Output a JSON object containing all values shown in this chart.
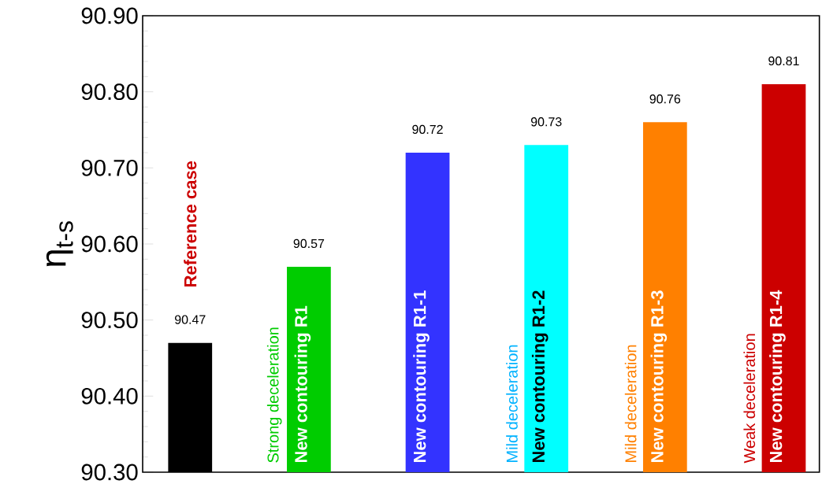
{
  "chart_data": {
    "type": "bar",
    "ylabel": "η$_{t-s}$",
    "categories": [
      "Reference case",
      "New contouring R1",
      "New contouring R1-1",
      "New contouring R1-2",
      "New contouring R1-3",
      "New contouring R1-4"
    ],
    "values": [
      90.47,
      90.57,
      90.72,
      90.73,
      90.76,
      90.81
    ],
    "colors": [
      "#000000",
      "#00cc00",
      "#3333ff",
      "#00ffff",
      "#ff8000",
      "#cc0000"
    ],
    "data_labels": true,
    "ylim": [
      90.3,
      90.9
    ],
    "yticks": [
      {
        "value": 90.3,
        "label": "90.30"
      },
      {
        "value": 90.4,
        "label": "90.40"
      },
      {
        "value": 90.5,
        "label": "90.50"
      },
      {
        "value": 90.6,
        "label": "90.60"
      },
      {
        "value": 90.7,
        "label": "90.70"
      },
      {
        "value": 90.8,
        "label": "90.80"
      },
      {
        "value": 90.9,
        "label": "90.90"
      }
    ],
    "annotations": [
      "Strong deceleration",
      "Mild deceleration",
      "Mild deceleration",
      "Weak deceleration"
    ],
    "grid": false
  }
}
